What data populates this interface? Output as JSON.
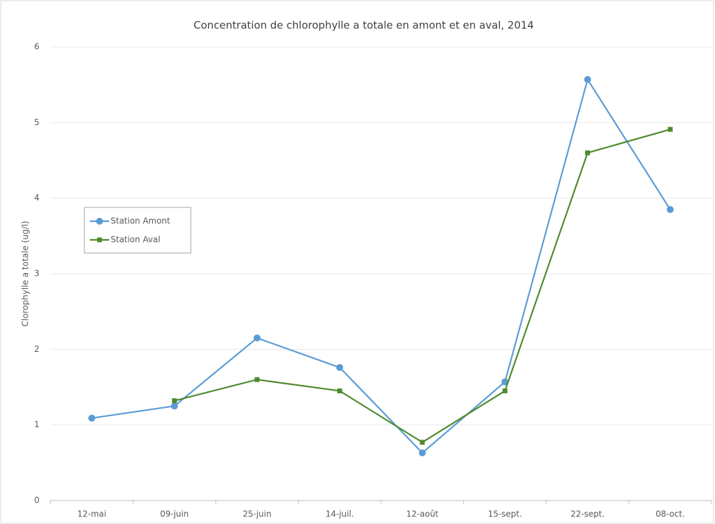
{
  "chart_data": {
    "type": "line",
    "title": "Concentration de chlorophylle a totale en amont et en aval, 2014",
    "y_label": "Clorophylle a totale (ug/l)",
    "categories": [
      "12-mai",
      "09-juin",
      "25-juin",
      "14-juil.",
      "12-août",
      "15-sept.",
      "22-sept.",
      "08-oct."
    ],
    "series": [
      {
        "name": "Station Amont",
        "color": "#5b9bd5",
        "marker": "circle",
        "values": [
          1.09,
          1.25,
          2.15,
          1.76,
          0.63,
          1.57,
          5.57,
          3.85
        ]
      },
      {
        "name": "Station Aval",
        "color": "#4e8a2e",
        "marker": "square",
        "values": [
          null,
          1.32,
          1.6,
          1.45,
          0.77,
          1.45,
          4.6,
          4.91
        ]
      }
    ],
    "ylim": [
      0,
      6
    ],
    "yticks": [
      0,
      1,
      2,
      3,
      4,
      5,
      6
    ],
    "grid": true,
    "legend": "left"
  }
}
